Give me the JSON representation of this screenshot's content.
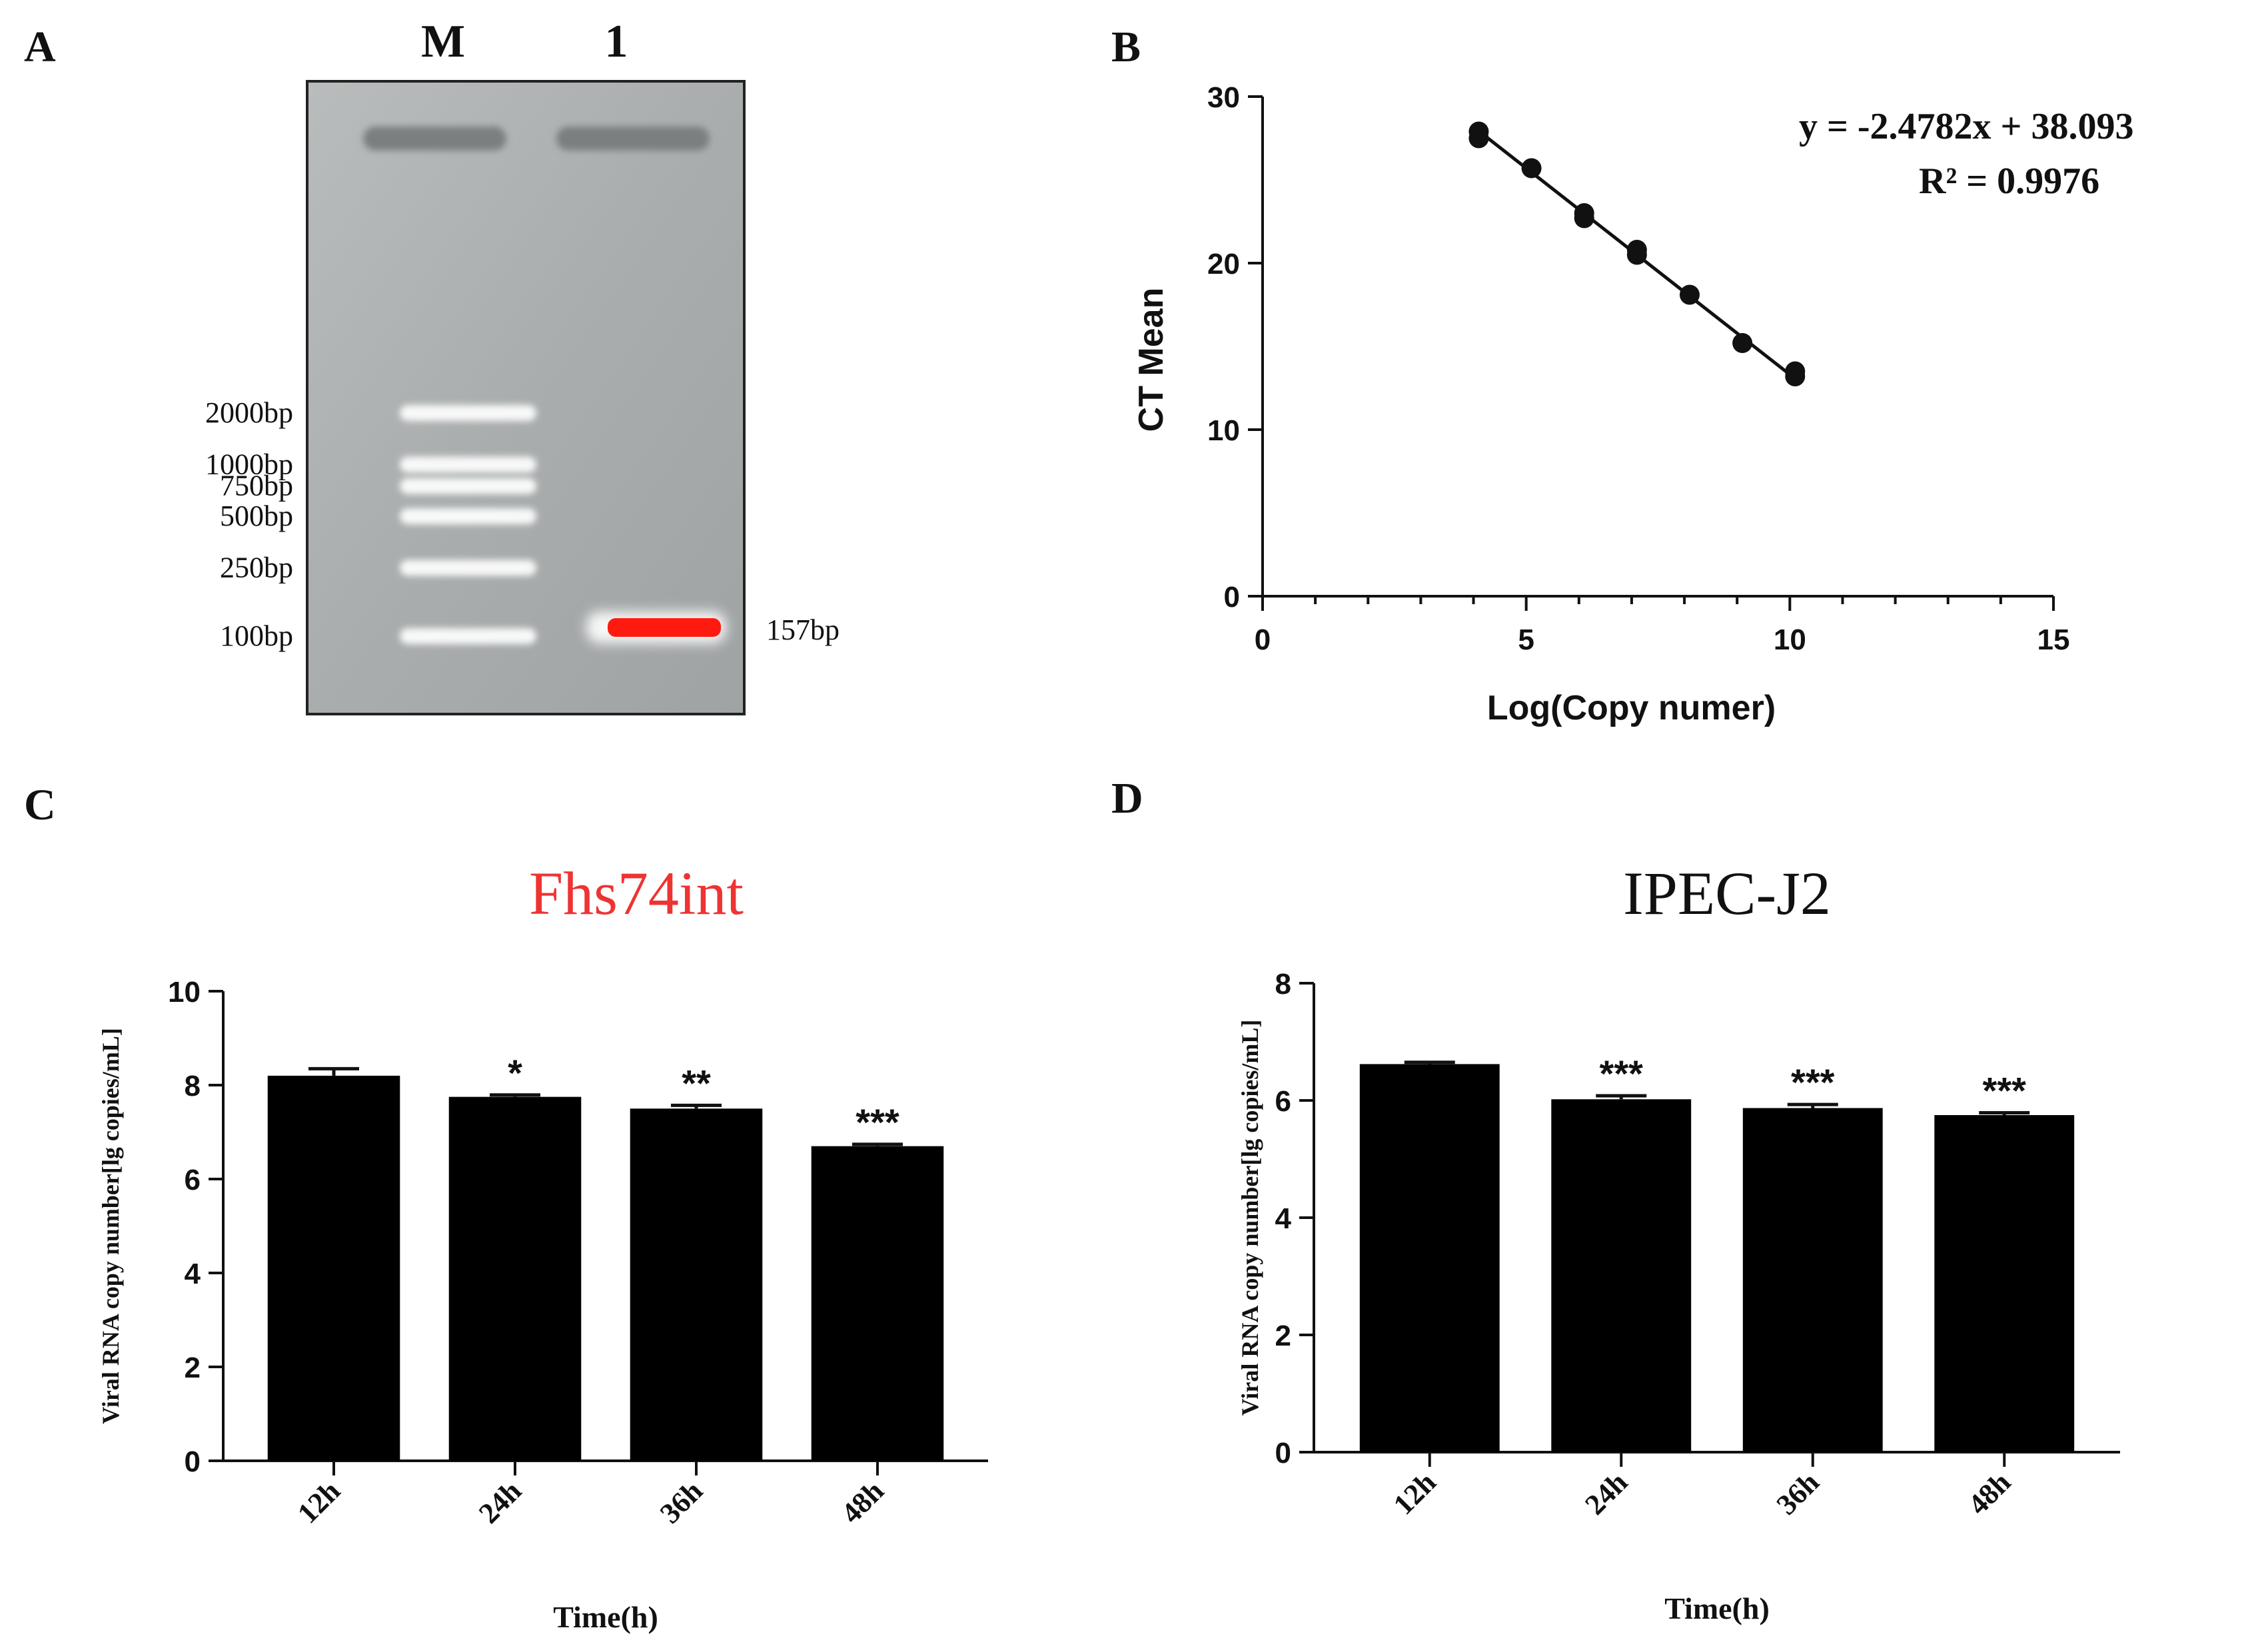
{
  "panels": {
    "A": "A",
    "B": "B",
    "C": "C",
    "D": "D"
  },
  "gel": {
    "lanes": [
      "M",
      "1"
    ],
    "marker_labels": [
      "2000bp",
      "1000bp",
      "750bp",
      "500bp",
      "250bp",
      "100bp"
    ],
    "marker_sizes_bp": [
      2000,
      1000,
      750,
      500,
      250,
      100
    ],
    "product_label": "157bp",
    "product_color": "#ff1a10"
  },
  "chart_data": [
    {
      "panel": "B",
      "type": "scatter",
      "xlabel": "Log(Copy numer)",
      "ylabel": "CT Mean",
      "xlim": [
        0,
        15
      ],
      "ylim": [
        0,
        30
      ],
      "xticks": [
        0,
        5,
        10,
        15
      ],
      "yticks": [
        0,
        10,
        20,
        30
      ],
      "points": [
        {
          "x": 4.1,
          "y": 27.9
        },
        {
          "x": 4.1,
          "y": 27.5
        },
        {
          "x": 5.1,
          "y": 25.7
        },
        {
          "x": 6.1,
          "y": 23.0
        },
        {
          "x": 6.1,
          "y": 22.7
        },
        {
          "x": 7.1,
          "y": 20.8
        },
        {
          "x": 7.1,
          "y": 20.5
        },
        {
          "x": 8.1,
          "y": 18.1
        },
        {
          "x": 9.1,
          "y": 15.2
        },
        {
          "x": 10.1,
          "y": 13.5
        },
        {
          "x": 10.1,
          "y": 13.2
        }
      ],
      "fit": {
        "slope": -2.4782,
        "intercept": 38.093,
        "x_range": [
          4.1,
          10.1
        ]
      },
      "equation": "y = -2.4782x + 38.093",
      "r_squared": "R² = 0.9976",
      "grid": false
    },
    {
      "panel": "C",
      "type": "bar",
      "title": "Fhs74int",
      "title_color": "#ee3333",
      "categories": [
        "12h",
        "24h",
        "36h",
        "48h"
      ],
      "values": [
        8.2,
        7.75,
        7.5,
        6.7
      ],
      "errors": [
        0.15,
        0.04,
        0.07,
        0.04
      ],
      "significance": [
        "",
        "*",
        "**",
        "***"
      ],
      "xlabel": "Time(h)",
      "ylabel": "Viral RNA copy number[lg copies/mL]",
      "ylim": [
        0,
        10
      ],
      "yticks": [
        0,
        2,
        4,
        6,
        8,
        10
      ],
      "bar_color": "#000000",
      "grid": false
    },
    {
      "panel": "D",
      "type": "bar",
      "title": "IPEC-J2",
      "title_color": "#111111",
      "categories": [
        "12h",
        "24h",
        "36h",
        "48h"
      ],
      "values": [
        6.62,
        6.02,
        5.87,
        5.75
      ],
      "errors": [
        0.03,
        0.06,
        0.06,
        0.04
      ],
      "significance": [
        "",
        "***",
        "***",
        "***"
      ],
      "xlabel": "Time(h)",
      "ylabel": "Viral RNA copy number[lg copies/mL]",
      "ylim": [
        0,
        8
      ],
      "yticks": [
        0,
        2,
        4,
        6,
        8
      ],
      "bar_color": "#000000",
      "grid": false
    }
  ]
}
